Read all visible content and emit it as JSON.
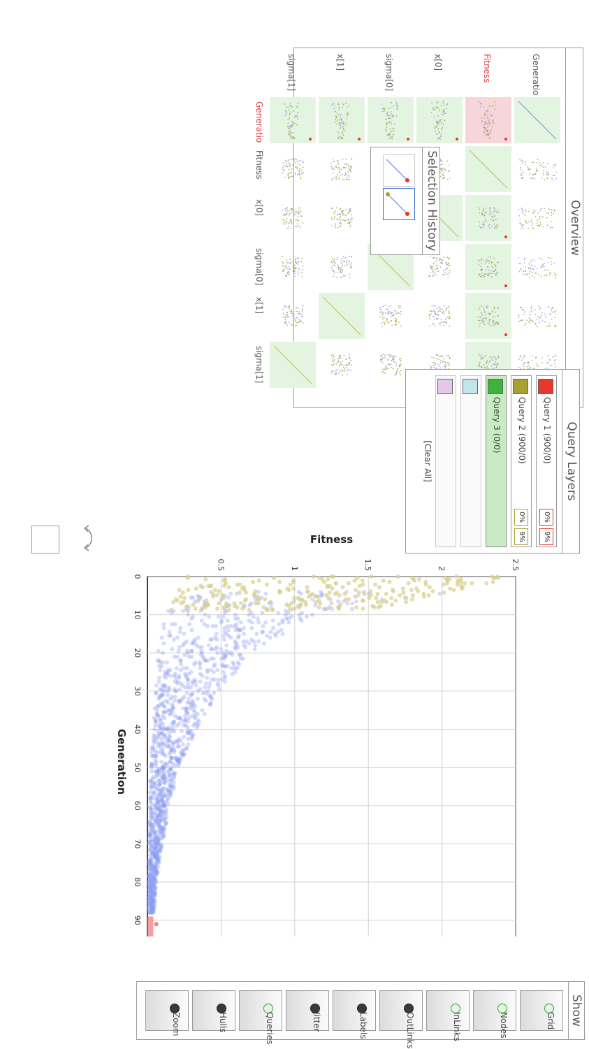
{
  "overview": {
    "title": "Overview",
    "variables": [
      "Generatio",
      "Fitness",
      "x[0]",
      "sigma[0]",
      "x[1]",
      "sigma[1]"
    ],
    "column_labels": [
      "Generatio",
      "Fitness",
      "x[0]",
      "sigma[0]",
      "x[1]",
      "sigma[1]"
    ],
    "active_row": "Fitness",
    "active_column": "Generatio"
  },
  "selection_history": {
    "title": "Selection History",
    "items": [
      {
        "state": "previous"
      },
      {
        "state": "current"
      }
    ]
  },
  "query_layers": {
    "title": "Query Layers",
    "clear_all": "[Clear All]",
    "layers": [
      {
        "label": "Query 1 (900/0)",
        "color": "#e8382b",
        "pct_a": "0%",
        "pct_b": "9%",
        "active": false
      },
      {
        "label": "Query 2 (900/0)",
        "color": "#a8a030",
        "pct_a": "0%",
        "pct_b": "9%",
        "active": false
      },
      {
        "label": "Query 3 (0/0)",
        "color": "#3cb43c",
        "pct_a": "",
        "pct_b": "",
        "active": true
      },
      {
        "label": "",
        "color": "#c2e4ea",
        "pct_a": "",
        "pct_b": "",
        "active": false
      },
      {
        "label": "",
        "color": "#e4c8ea",
        "pct_a": "",
        "pct_b": "",
        "active": false
      }
    ]
  },
  "show_bar": {
    "title": "Show",
    "buttons": [
      {
        "label": "Grid",
        "on": true
      },
      {
        "label": "Nodes",
        "on": true
      },
      {
        "label": "InLinks",
        "on": true
      },
      {
        "label": "OutLinks",
        "on": false
      },
      {
        "label": "Labels",
        "on": false
      },
      {
        "label": "Jitter",
        "on": false
      },
      {
        "label": "Queries",
        "on": true
      },
      {
        "label": "Hulls",
        "on": false
      },
      {
        "label": "Zoom",
        "on": false
      }
    ]
  },
  "colors": {
    "blue_points": "#8a9cf0",
    "olive_points": "#d9cf8c",
    "selection": "#f08080"
  },
  "chart_data": {
    "type": "scatter",
    "xlabel": "Generation",
    "ylabel": "Fitness",
    "xlim": [
      0,
      97
    ],
    "ylim": [
      0,
      2.5
    ],
    "x_ticks": [
      "0",
      "10",
      "20",
      "30",
      "40",
      "50",
      "60",
      "70",
      "80",
      "90"
    ],
    "y_ticks": [
      "0.5",
      "1",
      "1.5",
      "2",
      "2.5"
    ],
    "grid": true,
    "series": [
      {
        "color": "#d9cf8c",
        "values_desc": "early generations 0-9 spread from ~0 to 2.5"
      },
      {
        "color": "#8a9cf0",
        "values_desc": "generations 5-97 decaying from ~1.1 to ~0"
      },
      {
        "color": "#f08080",
        "values_desc": "generations 89-97 near 0"
      }
    ],
    "envelope_x": [
      0,
      2,
      5,
      8,
      10,
      15,
      20,
      25,
      30,
      40,
      50,
      60,
      70,
      80,
      90,
      97
    ],
    "envelope_y_max": [
      2.5,
      2.3,
      1.95,
      1.6,
      1.15,
      0.95,
      0.72,
      0.6,
      0.48,
      0.33,
      0.22,
      0.15,
      0.1,
      0.06,
      0.04,
      0.03
    ]
  }
}
